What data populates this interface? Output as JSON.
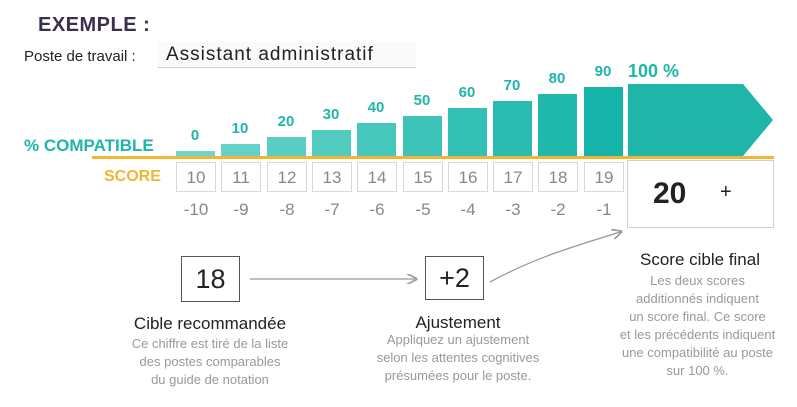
{
  "title": "EXEMPLE :",
  "job": {
    "label": "Poste de travail :",
    "value": "Assistant administratif"
  },
  "labels": {
    "compatible": "% COMPATIBLE",
    "score": "SCORE"
  },
  "colors": {
    "teal": "#1fb5a8",
    "gold": "#f2b531",
    "dark_title": "#3a2f4d"
  },
  "bars": [
    {
      "pct": "0",
      "score": "10",
      "offset": "-10"
    },
    {
      "pct": "10",
      "score": "11",
      "offset": "-9"
    },
    {
      "pct": "20",
      "score": "12",
      "offset": "-8"
    },
    {
      "pct": "30",
      "score": "13",
      "offset": "-7"
    },
    {
      "pct": "40",
      "score": "14",
      "offset": "-6"
    },
    {
      "pct": "50",
      "score": "15",
      "offset": "-5"
    },
    {
      "pct": "60",
      "score": "16",
      "offset": "-4"
    },
    {
      "pct": "70",
      "score": "17",
      "offset": "-3"
    },
    {
      "pct": "80",
      "score": "18",
      "offset": "-2"
    },
    {
      "pct": "90",
      "score": "19",
      "offset": "-1"
    }
  ],
  "final_bar": {
    "pct": "100 %"
  },
  "final": {
    "value": "20",
    "plus": "+",
    "title": "Score cible final",
    "text": [
      "Les deux scores",
      "additionnés indiquent",
      "un score final. Ce score",
      "et les précédents indiquent",
      "une compatibilité au poste",
      "sur 100 %."
    ]
  },
  "recommended": {
    "value": "18",
    "title": "Cible recommandée",
    "text": [
      "Ce chiffre est tiré de la liste",
      "des postes comparables",
      "du guide de notation"
    ]
  },
  "adjustment": {
    "value": "+2",
    "title": "Ajustement",
    "text": [
      "Appliquez un ajustement",
      "selon les attentes cognitives",
      "présumées pour le poste."
    ]
  }
}
